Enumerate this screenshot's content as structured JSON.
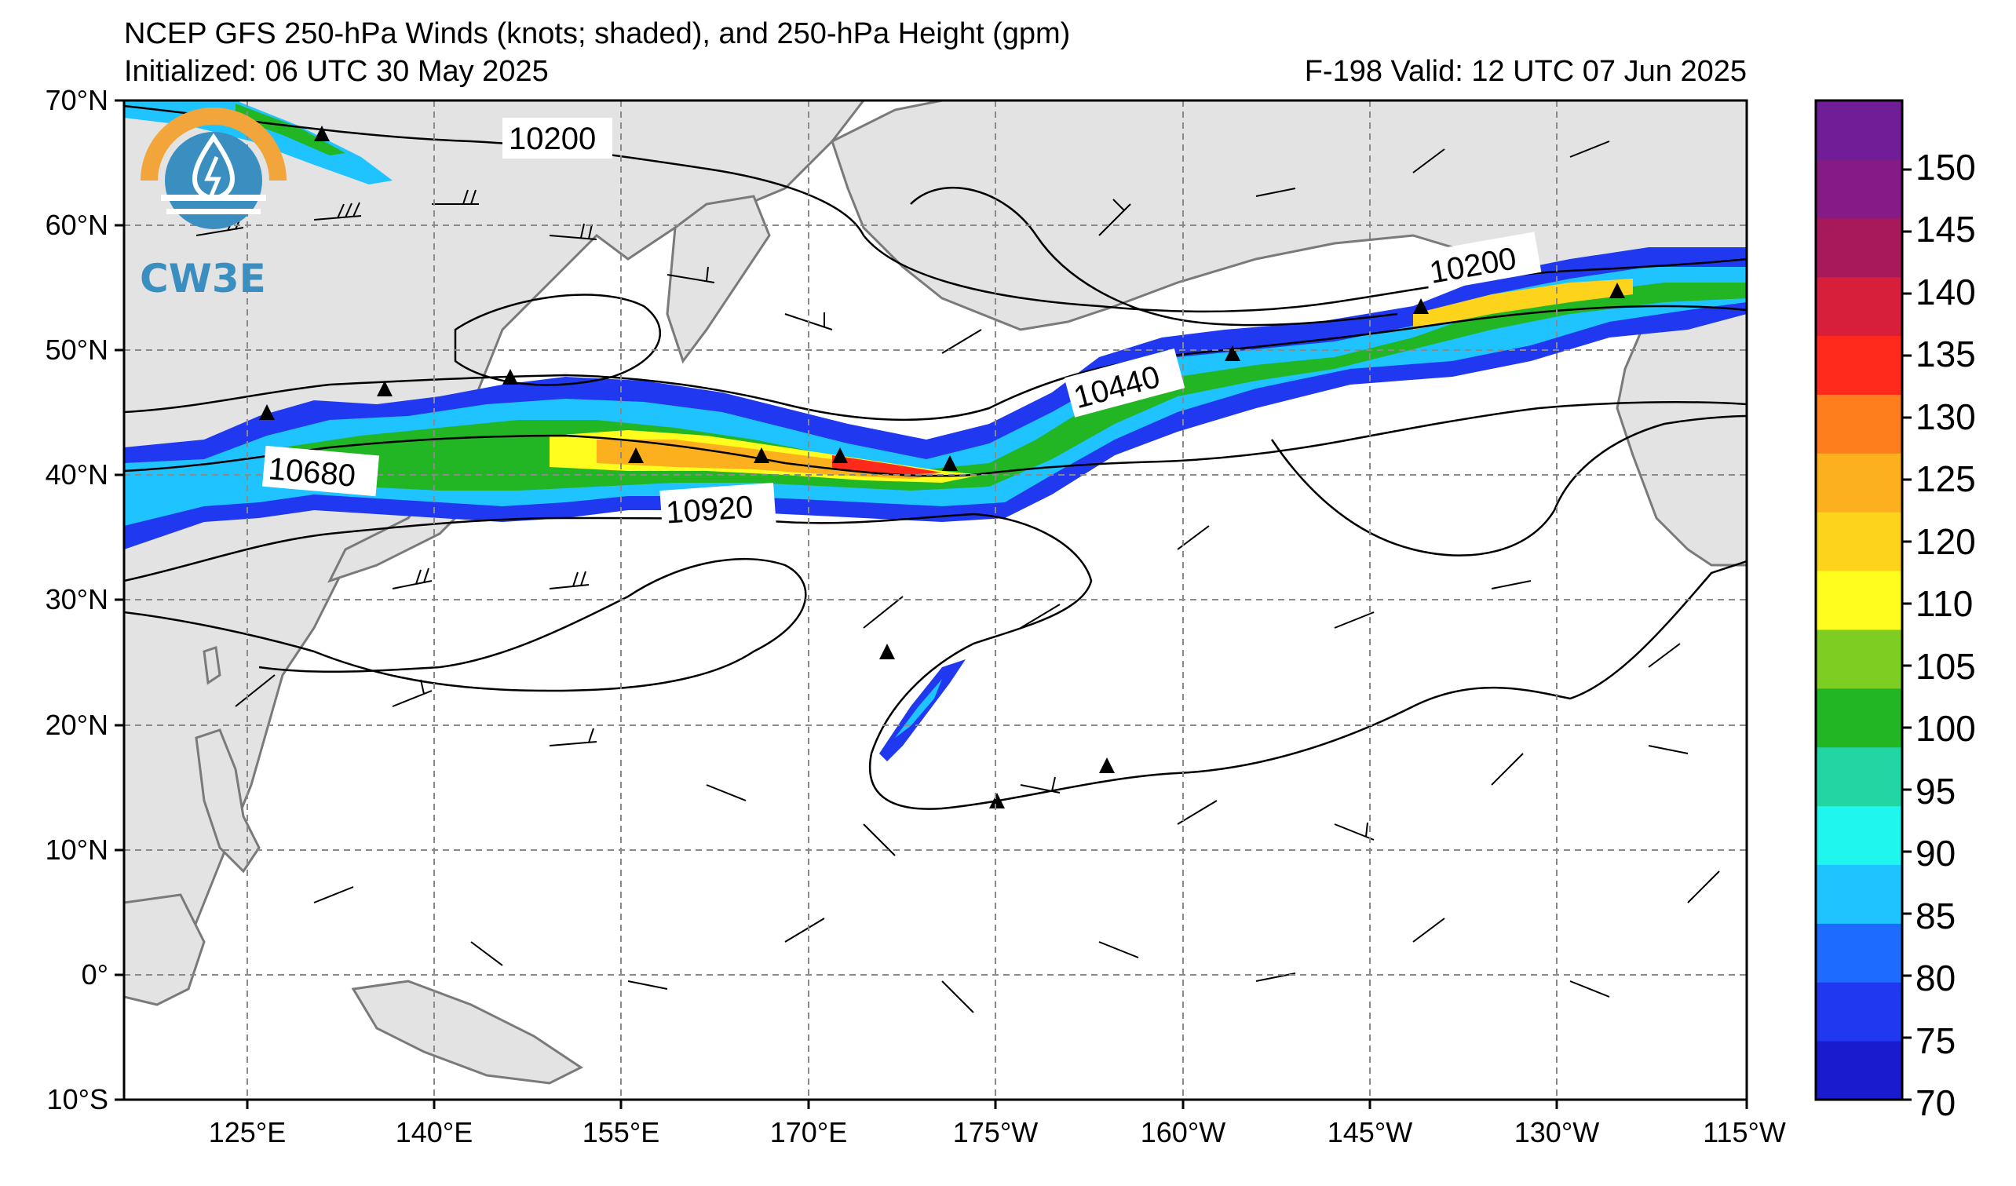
{
  "header": {
    "title": "NCEP GFS 250-hPa Winds (knots; shaded), and 250-hPa Height (gpm)",
    "initialized": "Initialized: 06 UTC 30 May 2025",
    "valid": "F-198  Valid: 12 UTC 07 Jun 2025"
  },
  "logo": {
    "text": "CW3E",
    "colors": {
      "ring": "#f2a53a",
      "body": "#3b8fc0"
    }
  },
  "map": {
    "lon_labels": [
      "125°E",
      "140°E",
      "155°E",
      "170°E",
      "175°W",
      "160°W",
      "145°W",
      "130°W",
      "115°W"
    ],
    "lat_labels": [
      "70°N",
      "60°N",
      "50°N",
      "40°N",
      "30°N",
      "20°N",
      "10°N",
      "0°",
      "10°S"
    ],
    "contour_labels": [
      "10200",
      "10200",
      "10440",
      "10680",
      "10920"
    ],
    "land_color": "#e3e3e3",
    "coast_color": "#7a7a7a"
  },
  "colorbar": {
    "labels": [
      "150",
      "145",
      "140",
      "135",
      "130",
      "125",
      "120",
      "110",
      "105",
      "100",
      "95",
      "90",
      "85",
      "80",
      "75",
      "70"
    ],
    "colors": [
      "#1a1acf",
      "#2038f0",
      "#1e6cff",
      "#1fc3ff",
      "#1ef6ee",
      "#21d6a2",
      "#22b524",
      "#7dcd22",
      "#fffd1e",
      "#fdd31c",
      "#fdb01e",
      "#fe7d1c",
      "#ff2a1c",
      "#d71e3a",
      "#a8195c",
      "#861a87",
      "#6f1e97"
    ]
  }
}
